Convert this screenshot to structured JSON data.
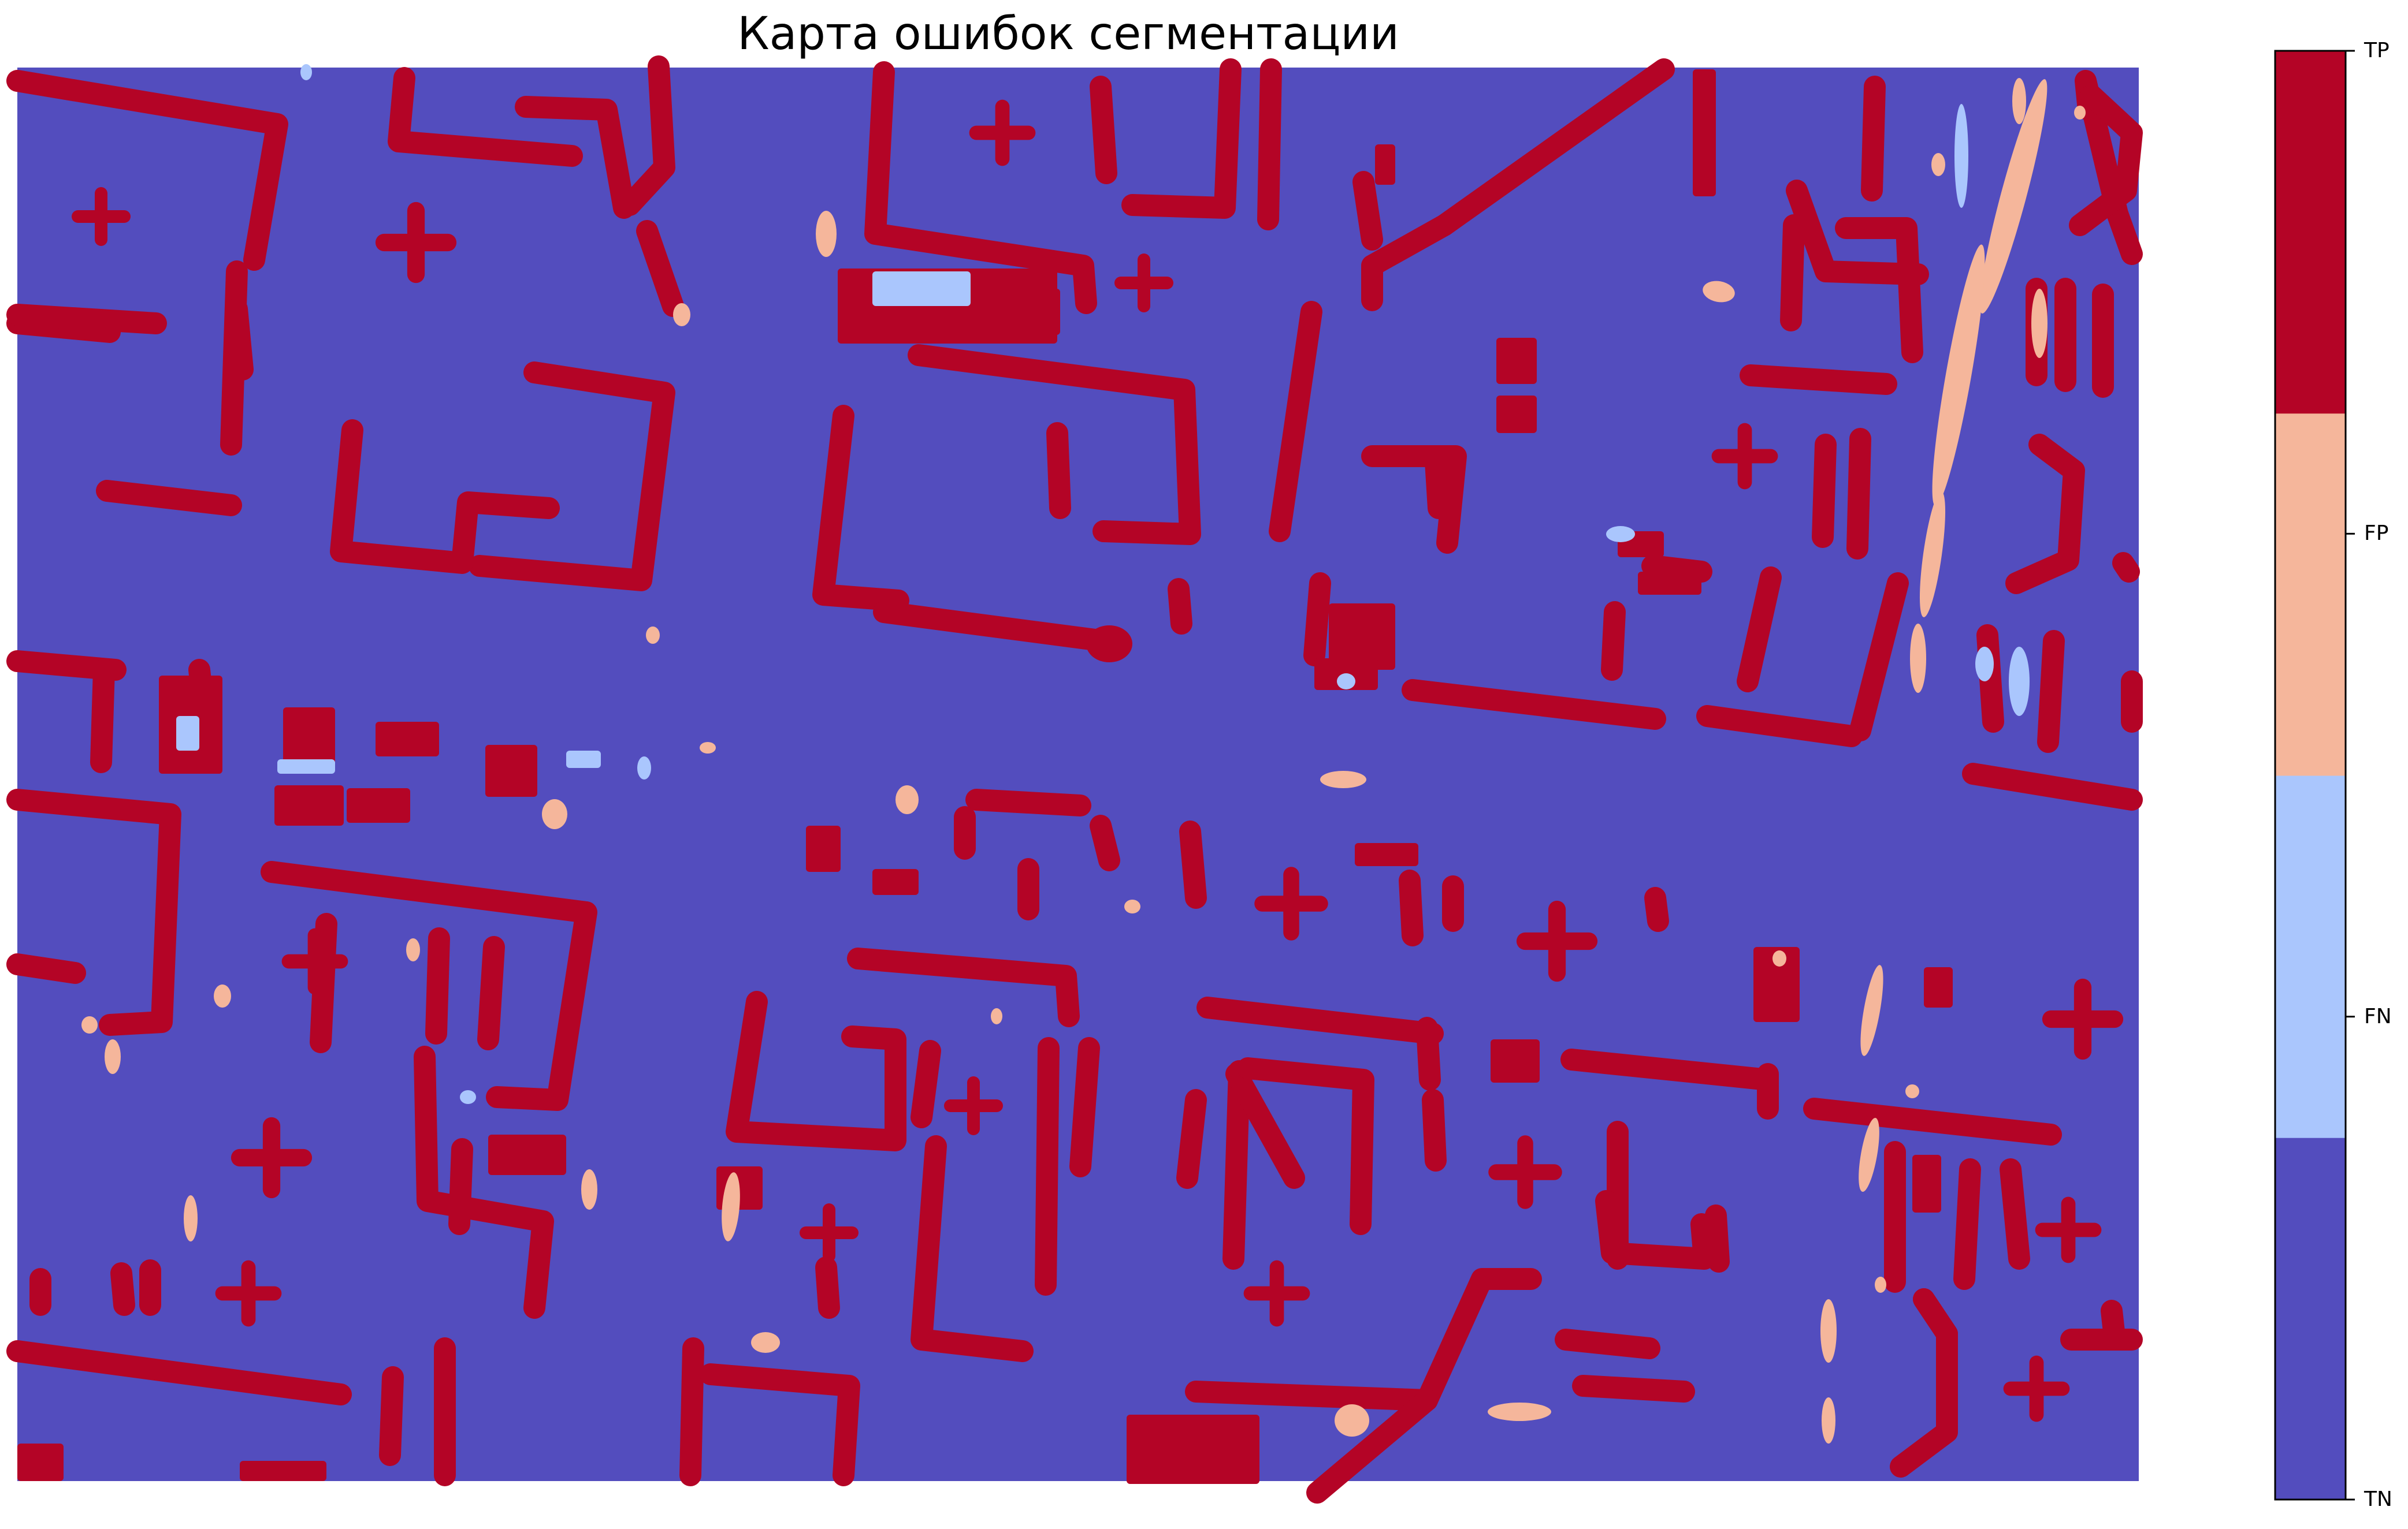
{
  "title": "Карта ошибок сегментации",
  "chart_data": {
    "type": "heatmap",
    "title": "Карта ошибок сегментации",
    "xlabel": "",
    "ylabel": "",
    "axes_visible": false,
    "grid": false,
    "colormap": "coolwarm (discrete, 4 levels)",
    "classes": [
      {
        "label": "TN",
        "value": 0,
        "color": "#534dbe"
      },
      {
        "label": "FN",
        "value": 1,
        "color": "#aac6fd"
      },
      {
        "label": "FP",
        "value": 2,
        "color": "#f5b69b"
      },
      {
        "label": "TP",
        "value": 3,
        "color": "#b40426"
      }
    ],
    "colorbar": {
      "position": "right",
      "ticks": [
        "TN",
        "FN",
        "FP",
        "TP"
      ]
    },
    "content": "Aerial urban building segmentation map: elongated and rectangular building footprints mostly TP, with scattered FP blobs and thin FN edges on TN background."
  }
}
